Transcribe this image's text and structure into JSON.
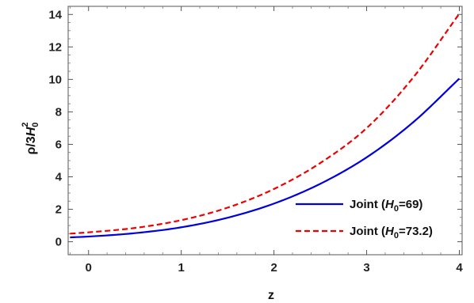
{
  "chart_data": {
    "type": "line",
    "xlabel": "z",
    "ylabel": "ρ/3H₀²",
    "ylabel_parts": {
      "main": "ρ/3",
      "var": "H",
      "sub": "0",
      "sup": "2"
    },
    "xlim": [
      -0.22,
      4.03
    ],
    "ylim": [
      -0.8,
      14.5
    ],
    "xticks": [
      0,
      1,
      2,
      3,
      4
    ],
    "yticks": [
      0,
      2,
      4,
      6,
      8,
      10,
      12,
      14
    ],
    "grid": false,
    "legend_position": "bottom-right",
    "series": [
      {
        "name": "Joint (H0=69)",
        "legend_parts": {
          "pre": "Joint (",
          "var": "H",
          "sub": "0",
          "post": "=69)"
        },
        "color": "#0000dd",
        "style": "solid",
        "x": [
          -0.2,
          0,
          0.5,
          1,
          1.5,
          2,
          2.5,
          3,
          3.5,
          4
        ],
        "y": [
          0.27,
          0.32,
          0.53,
          0.89,
          1.48,
          2.35,
          3.57,
          5.2,
          7.35,
          10.05
        ]
      },
      {
        "name": "Joint (H0=73.2)",
        "legend_parts": {
          "pre": "Joint (",
          "var": "H",
          "sub": "0",
          "post": "=73.2)"
        },
        "color": "#ee0000",
        "style": "dashed",
        "x": [
          -0.2,
          0,
          0.5,
          1,
          1.5,
          2,
          2.5,
          3,
          3.5,
          4
        ],
        "y": [
          0.5,
          0.58,
          0.85,
          1.33,
          2.1,
          3.25,
          4.85,
          7.0,
          10.1,
          14.05
        ]
      }
    ]
  }
}
